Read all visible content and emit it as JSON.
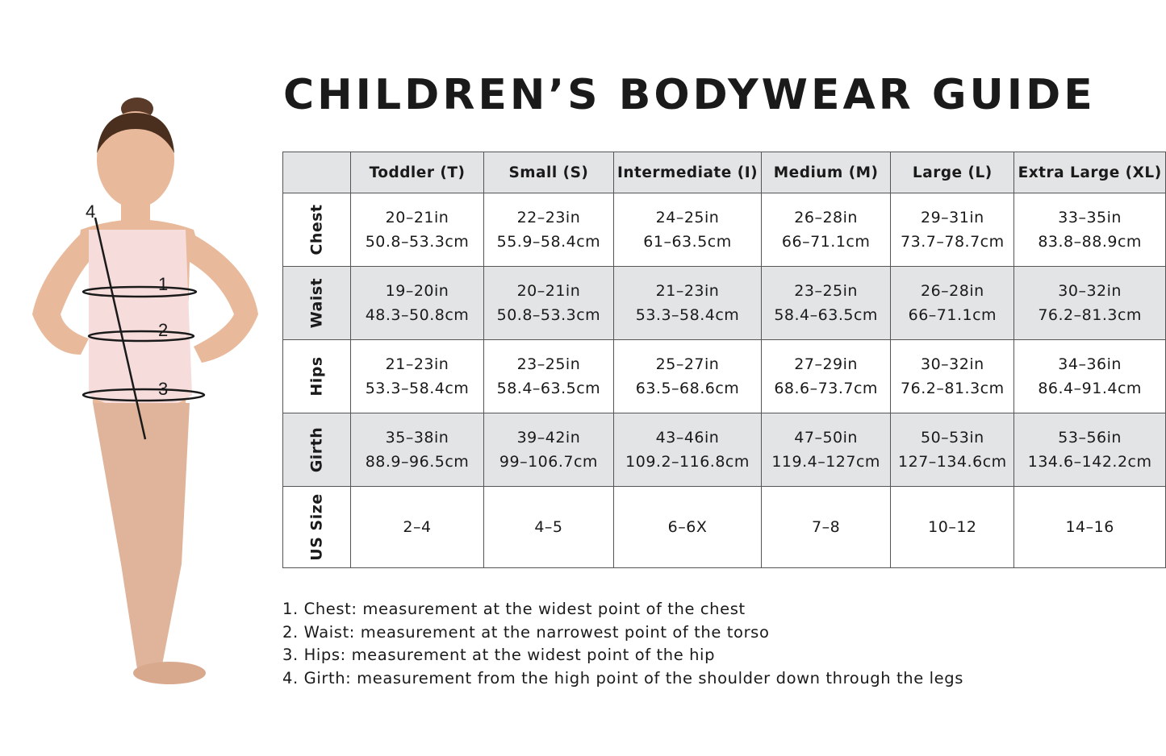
{
  "title": "CHILDREN’S BODYWEAR GUIDE",
  "figure": {
    "labels": [
      "1",
      "2",
      "3",
      "4"
    ]
  },
  "table": {
    "columns": [
      "Toddler (T)",
      "Small (S)",
      "Intermediate (I)",
      "Medium (M)",
      "Large (L)",
      "Extra Large (XL)"
    ],
    "rows": [
      {
        "label": "Chest",
        "cells": [
          [
            "20–21in",
            "50.8–53.3cm"
          ],
          [
            "22–23in",
            "55.9–58.4cm"
          ],
          [
            "24–25in",
            "61–63.5cm"
          ],
          [
            "26–28in",
            "66–71.1cm"
          ],
          [
            "29–31in",
            "73.7–78.7cm"
          ],
          [
            "33–35in",
            "83.8–88.9cm"
          ]
        ]
      },
      {
        "label": "Waist",
        "cells": [
          [
            "19–20in",
            "48.3–50.8cm"
          ],
          [
            "20–21in",
            "50.8–53.3cm"
          ],
          [
            "21–23in",
            "53.3–58.4cm"
          ],
          [
            "23–25in",
            "58.4–63.5cm"
          ],
          [
            "26–28in",
            "66–71.1cm"
          ],
          [
            "30–32in",
            "76.2–81.3cm"
          ]
        ]
      },
      {
        "label": "Hips",
        "cells": [
          [
            "21–23in",
            "53.3–58.4cm"
          ],
          [
            "23–25in",
            "58.4–63.5cm"
          ],
          [
            "25–27in",
            "63.5–68.6cm"
          ],
          [
            "27–29in",
            "68.6–73.7cm"
          ],
          [
            "30–32in",
            "76.2–81.3cm"
          ],
          [
            "34–36in",
            "86.4–91.4cm"
          ]
        ]
      },
      {
        "label": "Girth",
        "cells": [
          [
            "35–38in",
            "88.9–96.5cm"
          ],
          [
            "39–42in",
            "99–106.7cm"
          ],
          [
            "43–46in",
            "109.2–116.8cm"
          ],
          [
            "47–50in",
            "119.4–127cm"
          ],
          [
            "50–53in",
            "127–134.6cm"
          ],
          [
            "53–56in",
            "134.6–142.2cm"
          ]
        ]
      },
      {
        "label": "US Size",
        "cells": [
          [
            "2–4"
          ],
          [
            "4–5"
          ],
          [
            "6–6X"
          ],
          [
            "7–8"
          ],
          [
            "10–12"
          ],
          [
            "14–16"
          ]
        ]
      }
    ]
  },
  "notes": [
    "1. Chest: measurement at the widest point of the chest",
    "2. Waist: measurement at the narrowest point of the torso",
    "3. Hips: measurement at the widest point of the hip",
    "4. Girth: measurement from the high point of the shoulder down through the legs"
  ]
}
